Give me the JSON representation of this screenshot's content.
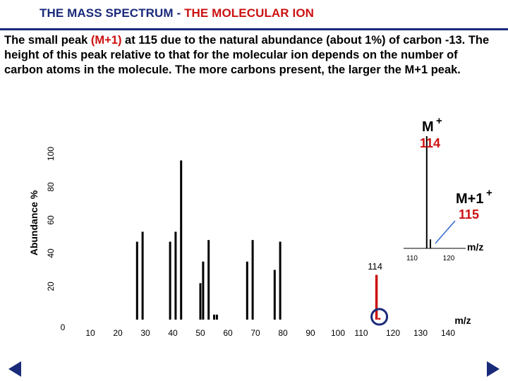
{
  "slide": {
    "title_part1": "THE MASS SPECTRUM - ",
    "title_part2": "THE MOLECULAR ION",
    "paragraph_before": "The small peak ",
    "paragraph_highlight": "(M+1)",
    "paragraph_after": " at 115 due to the natural abundance (about 1%) of carbon -13.  The height of this peak relative to that for the molecular ion depends on the number of carbon atoms in the molecule.  The more carbons present, the larger the M+1 peak."
  },
  "colors": {
    "title_blue": "#1a2a7a",
    "highlight_red": "#cc1111",
    "bar_black": "#000000",
    "circle_blue": "#1a2a7a",
    "inset_pointer": "#3366cc"
  },
  "chart_data": [
    {
      "type": "bar",
      "title": "",
      "xlabel": "m/z",
      "ylabel": "Abundance %",
      "xlim": [
        0,
        145
      ],
      "ylim": [
        0,
        100
      ],
      "x_tick_labels": [
        "0",
        "10",
        "20",
        "30",
        "40",
        "50",
        "60",
        "70",
        "80",
        "90",
        "100",
        "110",
        "120",
        "130",
        "140"
      ],
      "y_tick_labels": [
        "20",
        "40",
        "60",
        "80",
        "100"
      ],
      "series": [
        {
          "x": [
            27,
            29,
            39,
            41,
            43,
            50,
            51,
            53,
            55,
            56,
            67,
            69,
            77,
            79,
            114,
            115
          ],
          "values": [
            47,
            53,
            47,
            53,
            96,
            22,
            35,
            48,
            3,
            3,
            35,
            48,
            30,
            47,
            27,
            1
          ],
          "colors": [
            "#000000",
            "#000000",
            "#000000",
            "#000000",
            "#000000",
            "#000000",
            "#000000",
            "#000000",
            "#000000",
            "#000000",
            "#000000",
            "#000000",
            "#000000",
            "#000000",
            "#cc1111",
            "#cc1111"
          ]
        }
      ],
      "annotations": {
        "peak_label": "114",
        "circled_peak": "115"
      }
    },
    {
      "type": "bar",
      "title": "",
      "xlabel": "m/z",
      "xlim": [
        105,
        125
      ],
      "x_tick_labels": [
        "110",
        "120"
      ],
      "series": [
        {
          "x": [
            114,
            115
          ],
          "values": [
            100,
            8
          ]
        }
      ],
      "annotations": {
        "m_label": "M",
        "m_superscript": "+",
        "m_value": "114",
        "m1_label": "M+1",
        "m1_superscript": "+",
        "m1_value": "115"
      }
    }
  ],
  "navigation": {
    "prev_icon": "triangle-left",
    "next_icon": "triangle-right"
  }
}
